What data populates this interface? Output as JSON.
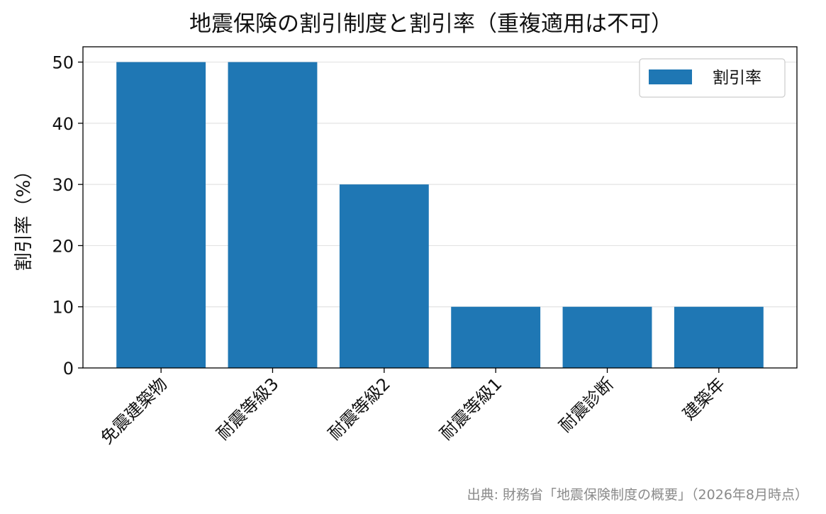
{
  "chart_data": {
    "type": "bar",
    "title": "地震保険の割引制度と割引率（重複適用は不可）",
    "xlabel": "",
    "ylabel": "割引率（%）",
    "categories": [
      "免震建築物",
      "耐震等級3",
      "耐震等級2",
      "耐震等級1",
      "耐震診断",
      "建築年"
    ],
    "series": [
      {
        "name": "割引率",
        "values": [
          50,
          50,
          30,
          10,
          10,
          10
        ],
        "color": "#1f77b4"
      }
    ],
    "ylim": [
      0,
      52.5
    ],
    "yticks": [
      0,
      10,
      20,
      30,
      40,
      50
    ],
    "grid": "y",
    "legend_position": "top-right",
    "source": "出典: 財務省「地震保険制度の概要」（2026年8月時点）"
  }
}
